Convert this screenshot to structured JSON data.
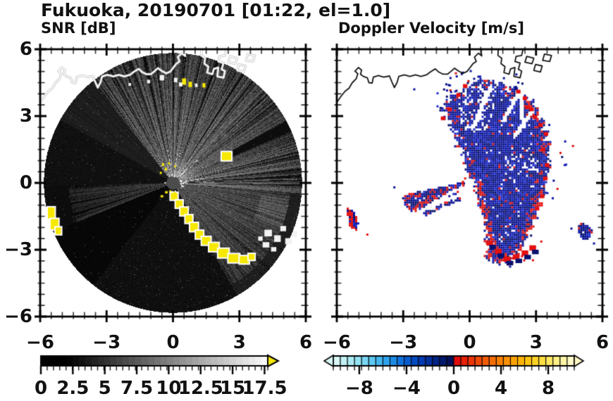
{
  "title": "Fukuoka, 20190701 [01:22, el=1.0]",
  "panels": {
    "snr": {
      "label": "SNR [dB]"
    },
    "doppler": {
      "label": "Doppler Velocity [m/s]"
    }
  },
  "axes": {
    "x_tick_labels": [
      "−6",
      "−3",
      "0",
      "3",
      "6"
    ],
    "x_tick_values": [
      -6,
      -3,
      0,
      3,
      6
    ],
    "y_tick_labels": [
      "6",
      "3",
      "0",
      "−3",
      "−6"
    ],
    "y_tick_values": [
      6,
      3,
      0,
      -3,
      -6
    ],
    "x_range": [
      -6,
      6
    ],
    "y_range": [
      -6,
      6
    ],
    "major_tick_interval": 3,
    "minor_tick_interval": 0.5
  },
  "colorbars": {
    "snr": {
      "tick_labels": [
        "0",
        "2.5",
        "5",
        "7.5",
        "10",
        "12.5",
        "15",
        "17.5"
      ],
      "tick_values": [
        0,
        2.5,
        5,
        7.5,
        10,
        12.5,
        15,
        17.5
      ],
      "min": 0,
      "max": 17.75,
      "segments": 36,
      "ramp": "black-to-white",
      "overflow_arrow_color": "#f6e800"
    },
    "doppler": {
      "tick_labels": [
        "−8",
        "−4",
        "0",
        "4",
        "8"
      ],
      "tick_values": [
        -8,
        -4,
        0,
        4,
        8
      ],
      "min": -10.2,
      "max": 10.2,
      "segment_colors": [
        "#d9f7f7",
        "#c3f2f5",
        "#adebf4",
        "#94e2f4",
        "#79d6f3",
        "#5ec7f2",
        "#44b6f0",
        "#2fa2ec",
        "#1e8ae4",
        "#0f71da",
        "#065bce",
        "#0149c0",
        "#003aae",
        "#002e9a",
        "#002384",
        "#00196e",
        "#001058",
        "#e30d0d",
        "#e72007",
        "#ec3404",
        "#f04803",
        "#f35b01",
        "#f66d00",
        "#f87f00",
        "#fa9100",
        "#fca300",
        "#fdb300",
        "#fdc30f",
        "#fed224",
        "#fede41",
        "#fee762",
        "#ffef84",
        "#fff5a6",
        "#fff9c6"
      ]
    }
  },
  "colors": {
    "background": "#ffffff",
    "frame": "#000000",
    "coastline_snr_panel": "#ffffff",
    "coastline_doppler_panel": "#141414",
    "snr_clutter_yellow": "#f6e800",
    "doppler_negative_navy": "#0a129c",
    "doppler_positive_red": "#e41111"
  },
  "chart_data": [
    {
      "type": "heatmap",
      "panel": "SNR [dB]",
      "x_range": [
        -6,
        6
      ],
      "y_range": [
        -6,
        6
      ],
      "x_ticks": [
        -6,
        -3,
        0,
        3,
        6
      ],
      "y_ticks": [
        6,
        3,
        0,
        -3,
        -6
      ],
      "radar_center": [
        0,
        0
      ],
      "scan_radius_km": 5.8,
      "colorbar": {
        "min": 0,
        "max": 17.75,
        "ticks": [
          0,
          2.5,
          5,
          7.5,
          10,
          12.5,
          15,
          17.5
        ],
        "colormap": "grayscale black to white",
        "overflow": "yellow arrow (> 17.5 dB)"
      },
      "features": "Circular PPI scan disk radius ~5.8 centered at (0,0); bright echo sector from NNW through N-E (SNR ~3-8 dB with radial streaks), medium gray E-SE sector, narrow gray wedge toward WSW, black sectors SW and NW; yellow saturated clutter arc running SSE from radar to (3.3,-3.4); yellow patch at left edge (-5.4,-1.7) and at (2.4,1.2) with dark shadow ray behind it; white echo blobs near (4.3,-2.3) to (5.4,-2.7) and along north coast; white coastline overlay at top"
    },
    {
      "type": "heatmap",
      "panel": "Doppler Velocity [m/s]",
      "x_range": [
        -6,
        6
      ],
      "y_range": [
        -6,
        6
      ],
      "x_ticks": [
        -6,
        -3,
        0,
        3,
        6
      ],
      "y_ticks": [
        6,
        3,
        0,
        -3,
        -6
      ],
      "radar_center": [
        0,
        0
      ],
      "colorbar": {
        "min": -10.2,
        "max": 10.2,
        "ticks": [
          -8,
          -4,
          0,
          4,
          8
        ],
        "colormap": "light cyan to dark navy (negative) | red to orange to cream (positive), arrows at both ends"
      },
      "features": "Main echo mass NE/E/SE of radar (x -1.5 to 3.6, y -3.7 to 4.8) with velocities mostly -2 to -8 m/s (dark navy) and scattered small positive (red) speckles; red fringes along SE and NE edges; red-speckled wedge pointing WSW from radar to (-3.0,-0.9); small red/navy echo at (-5.3,-1.6) and navy echo at (5.2,-2.2); white dot at radar origin (0,0); black coastline overlay at top"
    }
  ]
}
